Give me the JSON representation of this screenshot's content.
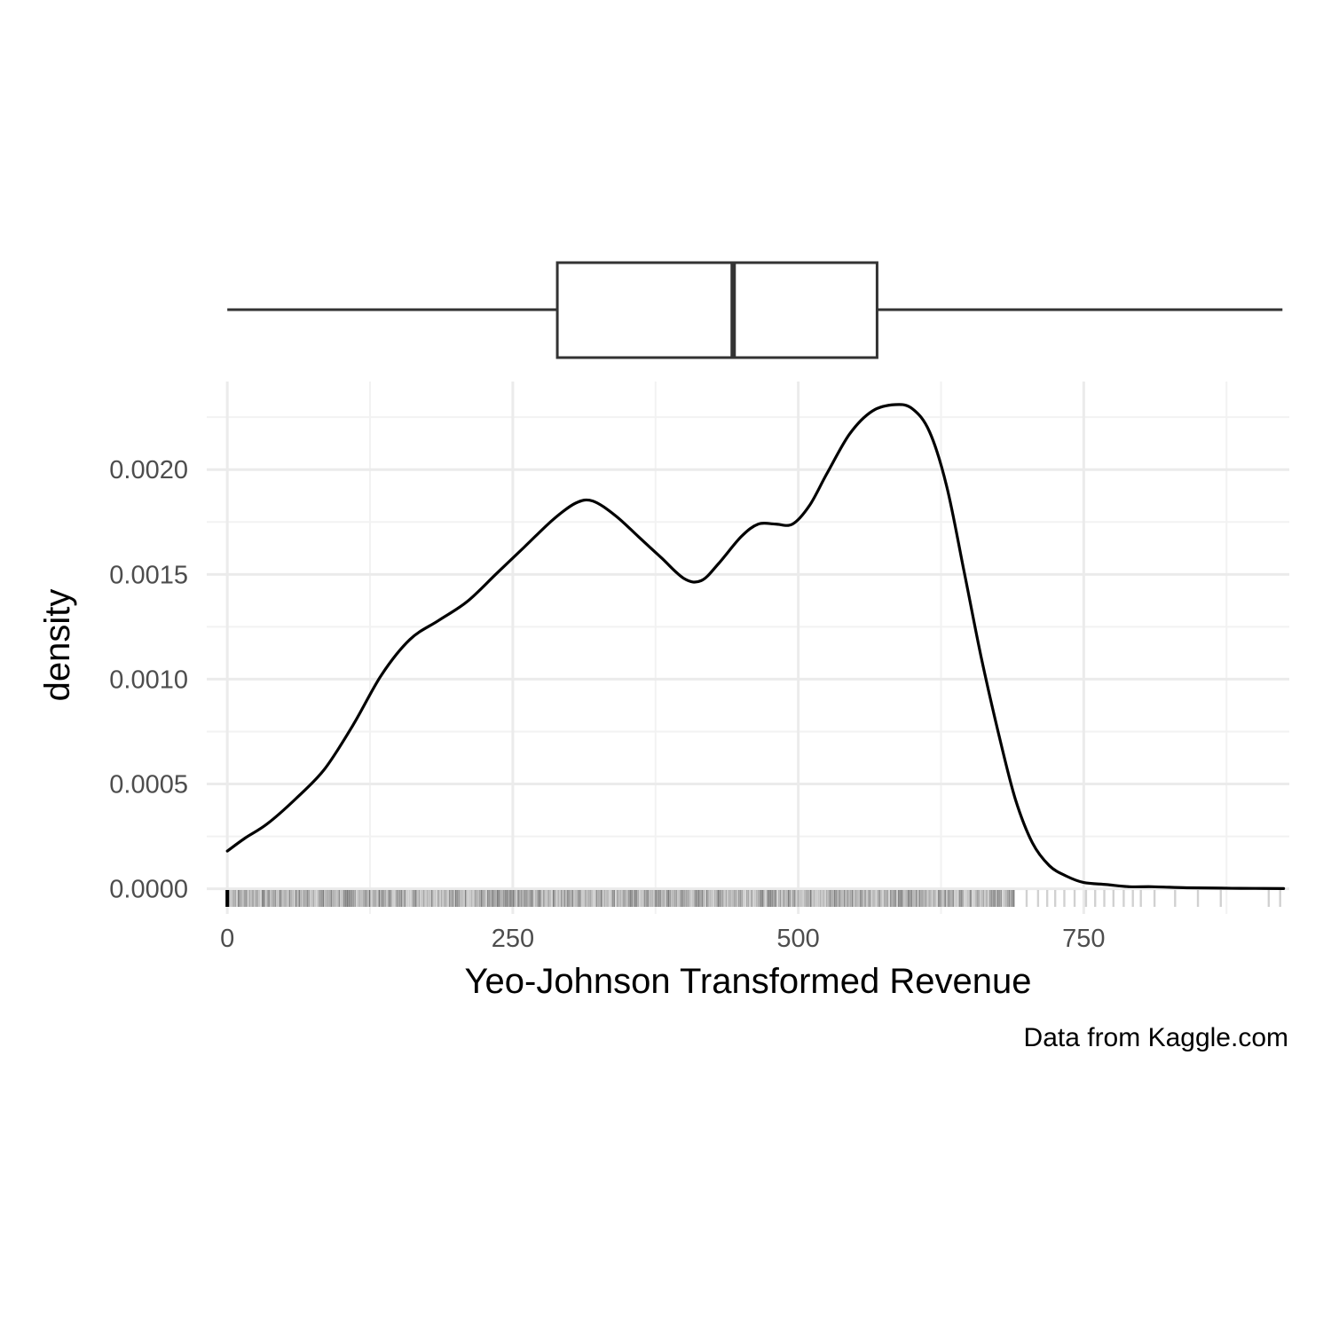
{
  "chart_data": {
    "type": "density",
    "xlabel": "Yeo-Johnson Transformed Revenue",
    "ylabel": "density",
    "caption": "Data from Kaggle.com",
    "xlim": [
      -18,
      930
    ],
    "ylim": [
      -0.00012,
      0.00242
    ],
    "x_ticks": [
      0,
      250,
      500,
      750
    ],
    "x_tick_labels": [
      "0",
      "250",
      "500",
      "750"
    ],
    "x_minor_ticks": [
      125,
      375,
      625,
      875
    ],
    "y_ticks": [
      0,
      0.0005,
      0.001,
      0.0015,
      0.002
    ],
    "y_tick_labels": [
      "0.0000",
      "0.0005",
      "0.0010",
      "0.0015",
      "0.0020"
    ],
    "y_minor_ticks": [
      0.00025,
      0.00075,
      0.00125,
      0.00175,
      0.00225
    ],
    "grid": true,
    "density": {
      "x": [
        0,
        15,
        35,
        60,
        85,
        110,
        135,
        160,
        185,
        210,
        235,
        260,
        285,
        305,
        320,
        340,
        360,
        380,
        400,
        415,
        430,
        450,
        465,
        480,
        495,
        510,
        525,
        545,
        565,
        585,
        600,
        615,
        630,
        645,
        660,
        675,
        690,
        705,
        720,
        735,
        750,
        770,
        790,
        810,
        840,
        870,
        900,
        925
      ],
      "y": [
        0.00018,
        0.00024,
        0.00031,
        0.00043,
        0.00057,
        0.00078,
        0.00102,
        0.00119,
        0.00128,
        0.00137,
        0.0015,
        0.00163,
        0.00176,
        0.00184,
        0.00185,
        0.00178,
        0.00168,
        0.00158,
        0.00148,
        0.00147,
        0.00155,
        0.00168,
        0.00174,
        0.00174,
        0.00174,
        0.00183,
        0.00198,
        0.00217,
        0.00228,
        0.00231,
        0.00229,
        0.00218,
        0.00192,
        0.00152,
        0.00111,
        0.00075,
        0.00043,
        0.00022,
        0.00011,
        6e-05,
        3e-05,
        2e-05,
        1e-05,
        1e-05,
        5e-06,
        3e-06,
        2e-06,
        1e-06
      ]
    },
    "boxplot": {
      "min": 0,
      "q1": 289,
      "median": 443,
      "q3": 569,
      "max": 924
    },
    "rug": {
      "dense_from": 0,
      "dense_to": 690,
      "sparse_values": [
        700,
        710,
        718,
        725,
        733,
        742,
        752,
        760,
        768,
        776,
        785,
        793,
        800,
        812,
        830,
        850,
        870,
        912,
        922
      ]
    }
  }
}
